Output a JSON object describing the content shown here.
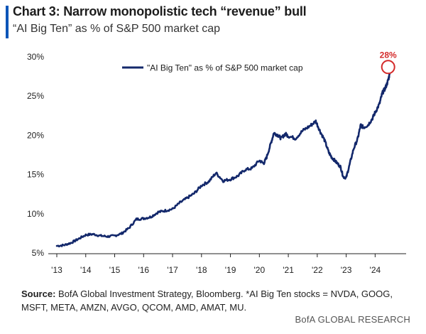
{
  "header": {
    "title": "Chart 3: Narrow monopolistic tech “revenue” bull",
    "subtitle": "“AI Big Ten” as % of S&P 500 market cap"
  },
  "footer": {
    "source_label": "Source:",
    "source_text": " BofA Global Investment Strategy, Bloomberg. *AI Big Ten stocks = NVDA, GOOG, MSFT, META, AMZN, AVGO, QCOM, AMD, AMAT, MU.",
    "brand": "BofA GLOBAL RESEARCH"
  },
  "colors": {
    "line": "#13286b",
    "accent": "#0a55b8",
    "annotation": "#d42a2a"
  },
  "chart_data": {
    "type": "line",
    "legend": {
      "label": "\"AI Big Ten\" as % of S&P 500 market cap",
      "position": "top-center"
    },
    "grid": false,
    "ylim": [
      5,
      30
    ],
    "xlim": [
      2013.0,
      2024.85
    ],
    "x_ticks": [
      2013,
      2014,
      2015,
      2016,
      2017,
      2018,
      2019,
      2020,
      2021,
      2022,
      2023,
      2024
    ],
    "x_tick_labels": [
      "'13",
      "'14",
      "'15",
      "'16",
      "'17",
      "'18",
      "'19",
      "'20",
      "'21",
      "'22",
      "'23",
      "'24"
    ],
    "y_ticks": [
      5,
      10,
      15,
      20,
      25,
      30
    ],
    "y_tick_labels": [
      "5%",
      "10%",
      "15%",
      "20%",
      "25%",
      "30%"
    ],
    "annotation": {
      "text": "28%",
      "x": 2024.45,
      "y": 27.8
    },
    "series": [
      {
        "name": "\"AI Big Ten\" as % of S&P 500 market cap",
        "x": [
          2013.0,
          2013.25,
          2013.5,
          2013.75,
          2014.0,
          2014.25,
          2014.5,
          2014.75,
          2015.0,
          2015.25,
          2015.5,
          2015.75,
          2016.0,
          2016.25,
          2016.5,
          2016.75,
          2017.0,
          2017.25,
          2017.5,
          2017.75,
          2018.0,
          2018.25,
          2018.5,
          2018.75,
          2019.0,
          2019.25,
          2019.5,
          2019.75,
          2020.0,
          2020.15,
          2020.25,
          2020.4,
          2020.5,
          2020.65,
          2020.75,
          2020.9,
          2021.0,
          2021.25,
          2021.5,
          2021.75,
          2021.95,
          2022.1,
          2022.25,
          2022.4,
          2022.5,
          2022.65,
          2022.8,
          2022.9,
          2023.0,
          2023.1,
          2023.25,
          2023.4,
          2023.5,
          2023.6,
          2023.75,
          2023.9,
          2024.0,
          2024.15,
          2024.25,
          2024.35,
          2024.45,
          2024.5
        ],
        "values": [
          5.9,
          6.0,
          6.3,
          6.8,
          7.3,
          7.4,
          7.2,
          7.1,
          7.2,
          7.5,
          8.2,
          9.3,
          9.4,
          9.6,
          10.2,
          10.4,
          10.6,
          11.4,
          12.0,
          12.6,
          13.6,
          14.1,
          15.2,
          14.2,
          14.4,
          14.8,
          15.6,
          15.8,
          16.8,
          16.4,
          17.2,
          19.0,
          20.3,
          20.0,
          19.6,
          20.2,
          19.9,
          19.6,
          20.6,
          21.2,
          21.8,
          20.5,
          19.4,
          17.8,
          17.2,
          16.6,
          16.0,
          14.7,
          14.6,
          16.0,
          18.2,
          19.6,
          21.3,
          21.0,
          21.3,
          22.1,
          22.9,
          24.0,
          25.4,
          26.0,
          27.0,
          27.8
        ]
      }
    ]
  }
}
